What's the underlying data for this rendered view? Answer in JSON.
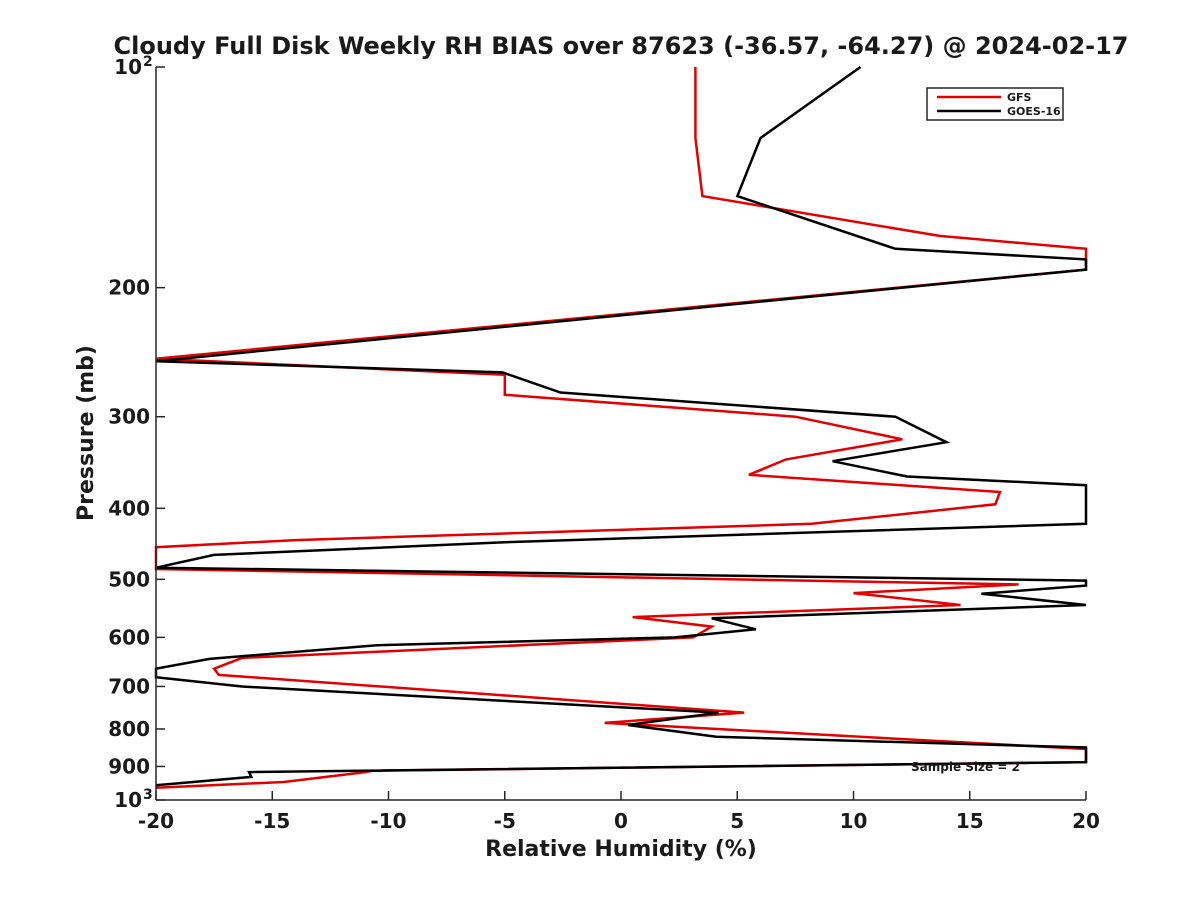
{
  "chart_data": {
    "type": "line",
    "title": "Cloudy Full Disk Weekly RH BIAS over 87623 (-36.57, -64.27) @ 2024-02-17",
    "xlabel": "Relative Humidity (%)",
    "ylabel": "Pressure (mb)",
    "xlim": [
      -20,
      20
    ],
    "ylim": [
      100,
      1000
    ],
    "y_scale": "log",
    "y_reversed": true,
    "x_ticks": [
      "-20",
      "-15",
      "-10",
      "-5",
      "0",
      "5",
      "10",
      "15",
      "20"
    ],
    "y_ticks": [
      {
        "value": 100,
        "label": "10",
        "sup": "2"
      },
      {
        "value": 200,
        "label": "200",
        "sup": ""
      },
      {
        "value": 300,
        "label": "300",
        "sup": ""
      },
      {
        "value": 400,
        "label": "400",
        "sup": ""
      },
      {
        "value": 500,
        "label": "500",
        "sup": ""
      },
      {
        "value": 600,
        "label": "600",
        "sup": ""
      },
      {
        "value": 700,
        "label": "700",
        "sup": ""
      },
      {
        "value": 800,
        "label": "800",
        "sup": ""
      },
      {
        "value": 900,
        "label": "900",
        "sup": ""
      },
      {
        "value": 1000,
        "label": "10",
        "sup": "3"
      }
    ],
    "legend_position": "top-right",
    "annotation": "Sample Size = 2",
    "series": [
      {
        "name": "GFS",
        "color": "#e00000",
        "points": [
          [
            3.2,
            100
          ],
          [
            3.2,
            125
          ],
          [
            3.5,
            150
          ],
          [
            13.7,
            170
          ],
          [
            20.0,
            177
          ],
          [
            20.0,
            189
          ],
          [
            -20.0,
            250
          ],
          [
            -5.0,
            263
          ],
          [
            -5.0,
            280
          ],
          [
            7.5,
            300
          ],
          [
            12.1,
            322
          ],
          [
            7.1,
            343
          ],
          [
            5.5,
            360
          ],
          [
            16.3,
            380
          ],
          [
            16.1,
            395
          ],
          [
            8.2,
            420
          ],
          [
            -14.0,
            442
          ],
          [
            -20.0,
            452
          ],
          [
            -20.0,
            484
          ],
          [
            17.1,
            508
          ],
          [
            10.0,
            522
          ],
          [
            14.6,
            542
          ],
          [
            0.5,
            563
          ],
          [
            3.9,
            580
          ],
          [
            3.1,
            600
          ],
          [
            -16.3,
            640
          ],
          [
            -17.5,
            662
          ],
          [
            -17.3,
            675
          ],
          [
            5.3,
            760
          ],
          [
            -0.7,
            785
          ],
          [
            20.0,
            852
          ],
          [
            20.0,
            888
          ],
          [
            -10.7,
            912
          ],
          [
            -11.0,
            916
          ],
          [
            -14.5,
            945
          ],
          [
            -20.0,
            962
          ]
        ]
      },
      {
        "name": "GOES-16",
        "color": "#000000",
        "points": [
          [
            10.3,
            100
          ],
          [
            6.0,
            125
          ],
          [
            5.0,
            150
          ],
          [
            11.8,
            177
          ],
          [
            20.0,
            183
          ],
          [
            20.0,
            189
          ],
          [
            -20.0,
            252
          ],
          [
            -5.1,
            261
          ],
          [
            -2.6,
            278
          ],
          [
            11.8,
            300
          ],
          [
            14.0,
            325
          ],
          [
            9.1,
            345
          ],
          [
            12.3,
            362
          ],
          [
            20.0,
            372
          ],
          [
            20.0,
            420
          ],
          [
            -5.0,
            445
          ],
          [
            -17.5,
            463
          ],
          [
            -20.0,
            482
          ],
          [
            20.0,
            502
          ],
          [
            20.0,
            510
          ],
          [
            15.5,
            523
          ],
          [
            20.0,
            542
          ],
          [
            3.9,
            565
          ],
          [
            5.8,
            585
          ],
          [
            2.3,
            600
          ],
          [
            -10.5,
            615
          ],
          [
            -17.7,
            642
          ],
          [
            -20.0,
            662
          ],
          [
            -20.0,
            680
          ],
          [
            -16.3,
            700
          ],
          [
            4.2,
            760
          ],
          [
            0.3,
            790
          ],
          [
            4.1,
            820
          ],
          [
            20.0,
            848
          ],
          [
            20.0,
            888
          ],
          [
            -16.0,
            916
          ],
          [
            -15.9,
            930
          ],
          [
            -20.0,
            955
          ]
        ]
      }
    ]
  }
}
